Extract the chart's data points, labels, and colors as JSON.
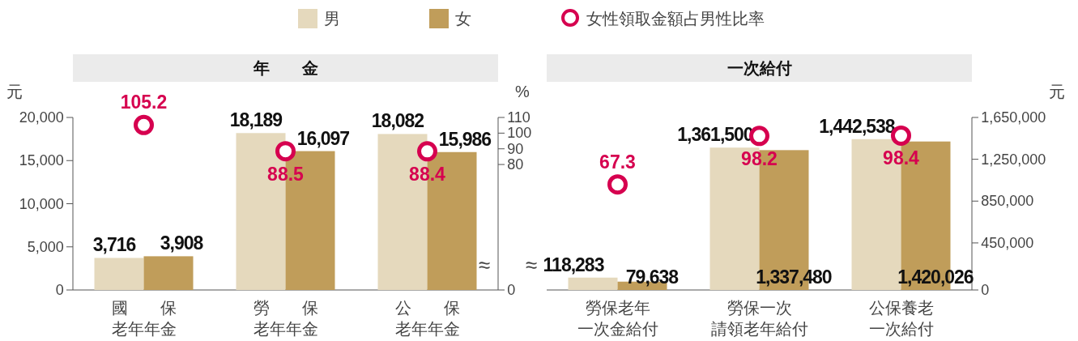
{
  "chart_data": [
    {
      "type": "bar",
      "title": "年　　金",
      "categories": [
        "國　　保老年年金",
        "勞　　保老年年金",
        "公　　保老年年金"
      ],
      "series": [
        {
          "name": "男",
          "color": "#e5d9bd",
          "values": [
            3716,
            18189,
            18082
          ],
          "value_labels": [
            "3,716",
            "18,189",
            "18,082"
          ]
        },
        {
          "name": "女",
          "color": "#c09d5a",
          "values": [
            3908,
            16097,
            15986
          ],
          "value_labels": [
            "3,908",
            "16,097",
            "15,986"
          ]
        },
        {
          "name": "女性領取金額占男性比率",
          "type": "scatter",
          "axis": "y2",
          "color": "#d6004f",
          "values": [
            105.2,
            88.5,
            88.4
          ]
        }
      ],
      "ylim": [
        0,
        20000
      ],
      "yticks": [
        0,
        {
          "value": 5000,
          "label": "5,000"
        },
        {
          "value": 10000,
          "label": "10,000"
        },
        {
          "value": 15000,
          "label": "15,000"
        },
        {
          "value": 20000,
          "label": "20,000"
        }
      ],
      "y2lim": [
        0,
        110
      ],
      "y2ticks": [
        0,
        80,
        90,
        100,
        110
      ],
      "grid": false,
      "ylabel": "元",
      "y2label": "%",
      "data_labels": true,
      "legend": "top",
      "marker": "circle",
      "annotations": [
        "≈"
      ]
    },
    {
      "type": "bar",
      "title": "一次給付",
      "categories": [
        "勞保老年一次金給付",
        "勞保一次請領老年給付",
        "公保養老一次給付"
      ],
      "series": [
        {
          "name": "男",
          "color": "#e5d9bd",
          "values": [
            118283,
            1361500,
            1442538
          ],
          "value_labels": [
            "118,283",
            "1,361,500",
            "1,442,538"
          ]
        },
        {
          "name": "女",
          "color": "#c09d5a",
          "values": [
            79638,
            1337480,
            1420026
          ],
          "value_labels": [
            "79,638",
            "1,337,480",
            "1,420,026"
          ]
        },
        {
          "name": "女性領取金額占男性比率",
          "type": "scatter",
          "axis": "y2",
          "color": "#d6004f",
          "values": [
            67.3,
            98.2,
            98.4
          ]
        }
      ],
      "ylim": [
        0,
        1650000
      ],
      "yticks": [
        0,
        {
          "value": 450000,
          "label": "450,000"
        },
        {
          "value": 850000,
          "label": "850,000"
        },
        {
          "value": 1250000,
          "label": "1,250,000"
        },
        {
          "value": 1650000,
          "label": "1,650,000"
        }
      ],
      "y2lim": [
        0,
        110
      ],
      "ylabel": "元",
      "data_labels": true,
      "legend": "top",
      "grid": false,
      "marker": "circle",
      "annotations": [
        "≈"
      ]
    }
  ]
}
